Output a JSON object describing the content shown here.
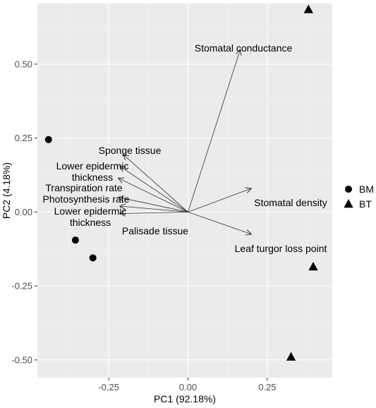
{
  "chart_data": {
    "type": "scatter",
    "title": "",
    "xlabel": "PC1 (92.18%)",
    "ylabel": "PC2 (4.18%)",
    "xlim": [
      -0.475,
      0.455
    ],
    "ylim": [
      -0.56,
      0.705
    ],
    "x_ticks": [
      -0.25,
      0.0,
      0.25
    ],
    "x_tick_labels": [
      "-0.25",
      "0.00",
      "0.25"
    ],
    "y_ticks": [
      -0.5,
      -0.25,
      0.0,
      0.25,
      0.5
    ],
    "y_tick_labels": [
      "-0.50",
      "-0.25",
      "0.00",
      "0.25",
      "0.50"
    ],
    "grid": true,
    "legend": {
      "placement": "right",
      "entries": [
        {
          "label": "BM",
          "shape": "circle"
        },
        {
          "label": "BT",
          "shape": "triangle"
        }
      ]
    },
    "series": [
      {
        "name": "BM",
        "shape": "circle",
        "points": [
          {
            "x": -0.44,
            "y": 0.245
          },
          {
            "x": -0.355,
            "y": -0.095
          },
          {
            "x": -0.3,
            "y": -0.155
          }
        ]
      },
      {
        "name": "BT",
        "shape": "triangle",
        "points": [
          {
            "x": 0.38,
            "y": 0.685
          },
          {
            "x": 0.395,
            "y": -0.185
          },
          {
            "x": 0.325,
            "y": -0.49
          }
        ]
      }
    ],
    "vectors": [
      {
        "label": "Stomatal  conductance",
        "x": 0.165,
        "y": 0.55
      },
      {
        "label": "Stomatal density",
        "x": 0.2,
        "y": 0.08
      },
      {
        "label": "Leaf turgor loss point",
        "x": 0.2,
        "y": -0.075
      },
      {
        "label": "Sponge tissue",
        "x": -0.205,
        "y": 0.195
      },
      {
        "label": "Lower epidermic\nthickness",
        "x": -0.215,
        "y": 0.155
      },
      {
        "label": "Transpiration rate",
        "x": -0.22,
        "y": 0.115
      },
      {
        "label": "Photosynthesis rate",
        "x": -0.22,
        "y": 0.05
      },
      {
        "label": "Lower epidermic\nthickness",
        "x": -0.215,
        "y": 0.02
      },
      {
        "label": "Palisade tissue",
        "x": -0.215,
        "y": -0.005
      }
    ]
  }
}
